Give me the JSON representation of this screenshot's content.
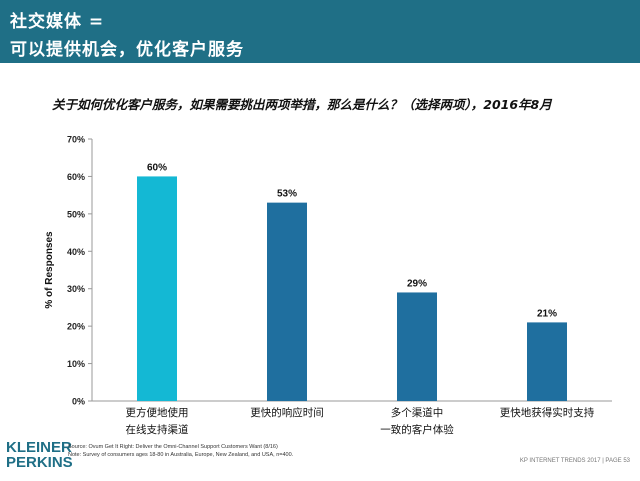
{
  "header": {
    "line1": "社交媒体 =",
    "line2": "可以提供机会，优化客户服务"
  },
  "chart_title": "关于如何优化客户服务，如果需要挑出两项举措，那么是什么？（选择两项），2016年8月",
  "chart_data": {
    "type": "bar",
    "categories": [
      [
        "更方便地使用",
        "在线支持渠道"
      ],
      [
        "更快的响应时间"
      ],
      [
        "多个渠道中",
        "一致的客户体验"
      ],
      [
        "更快地获得实时支持"
      ]
    ],
    "values": [
      60,
      53,
      29,
      21
    ],
    "value_labels": [
      "60%",
      "53%",
      "29%",
      "21%"
    ],
    "bar_colors": [
      "#14b8d4",
      "#1f6f9f",
      "#1f6f9f",
      "#1f6f9f"
    ],
    "ylabel": "% of Responses",
    "ylim": [
      0,
      70
    ],
    "yticks": [
      0,
      10,
      20,
      30,
      40,
      50,
      60,
      70
    ],
    "ytick_labels": [
      "0%",
      "10%",
      "20%",
      "30%",
      "40%",
      "50%",
      "60%",
      "70%"
    ]
  },
  "source": {
    "line1": "Source: Ovum Get It Right: Deliver the Omni-Channel Support Customers Want (8/16)",
    "line2": "Note: Survey of consumers ages 18-80 in Australia, Europe, New Zealand, and USA, n=400."
  },
  "logo": {
    "line1": "KLEINER",
    "line2": "PERKINS"
  },
  "footer": "KP INTERNET TRENDS 2017  |  PAGE 53"
}
